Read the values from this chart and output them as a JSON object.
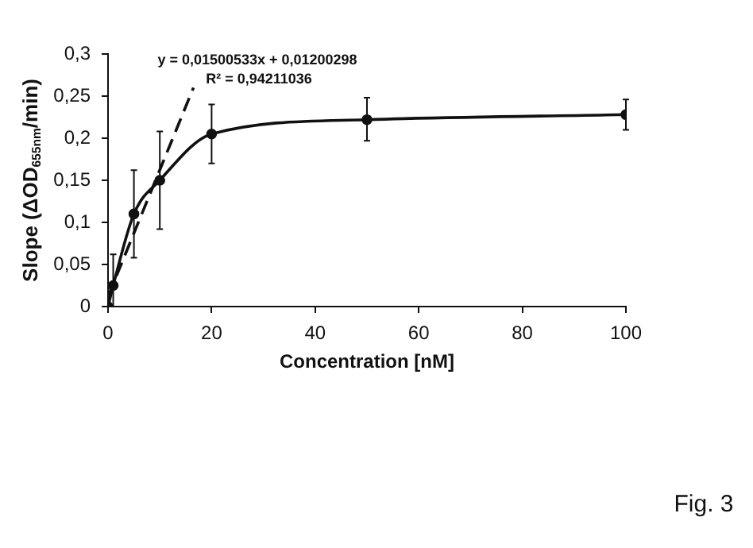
{
  "chart_data": {
    "type": "line",
    "xlabel": "Concentration [nM]",
    "ylabel": "Slope (ΔOD$_{655nm}$/min)",
    "x": [
      0,
      1,
      5,
      10,
      20,
      50,
      100
    ],
    "series": [
      {
        "color": "#111111",
        "values": [
          0,
          0.025,
          0.11,
          0.15,
          0.205,
          0.222,
          0.228
        ],
        "errors": [
          null,
          [
            0,
            0.062
          ],
          [
            0.058,
            0.162
          ],
          [
            0.092,
            0.208
          ],
          [
            0.17,
            0.24
          ],
          [
            0.197,
            0.248
          ],
          [
            0.21,
            0.246
          ]
        ]
      },
      {
        "type": "line",
        "color": "#111111",
        "x": [
          0,
          16.5
        ],
        "values": [
          0.012,
          0.26
        ],
        "line_style": "dashed",
        "marker": "none"
      }
    ],
    "xlim": [
      0,
      100
    ],
    "xticks": [
      0,
      20,
      40,
      60,
      80,
      100
    ],
    "ylim": [
      0,
      0.3
    ],
    "yticks": [
      0,
      {
        "value": 0.05,
        "label": "0,05"
      },
      {
        "value": 0.1,
        "label": "0,1"
      },
      {
        "value": 0.15,
        "label": "0,15"
      },
      {
        "value": 0.2,
        "label": "0,2"
      },
      {
        "value": 0.25,
        "label": "0,25"
      },
      {
        "value": 0.3,
        "label": "0,3"
      }
    ],
    "grid": false,
    "legend": false,
    "marker": "circle",
    "line_style": "solid",
    "annotations": [
      "y = 0,01500533x + 0,01200298",
      "R² = 0,94211036",
      "Fig. 3"
    ]
  }
}
